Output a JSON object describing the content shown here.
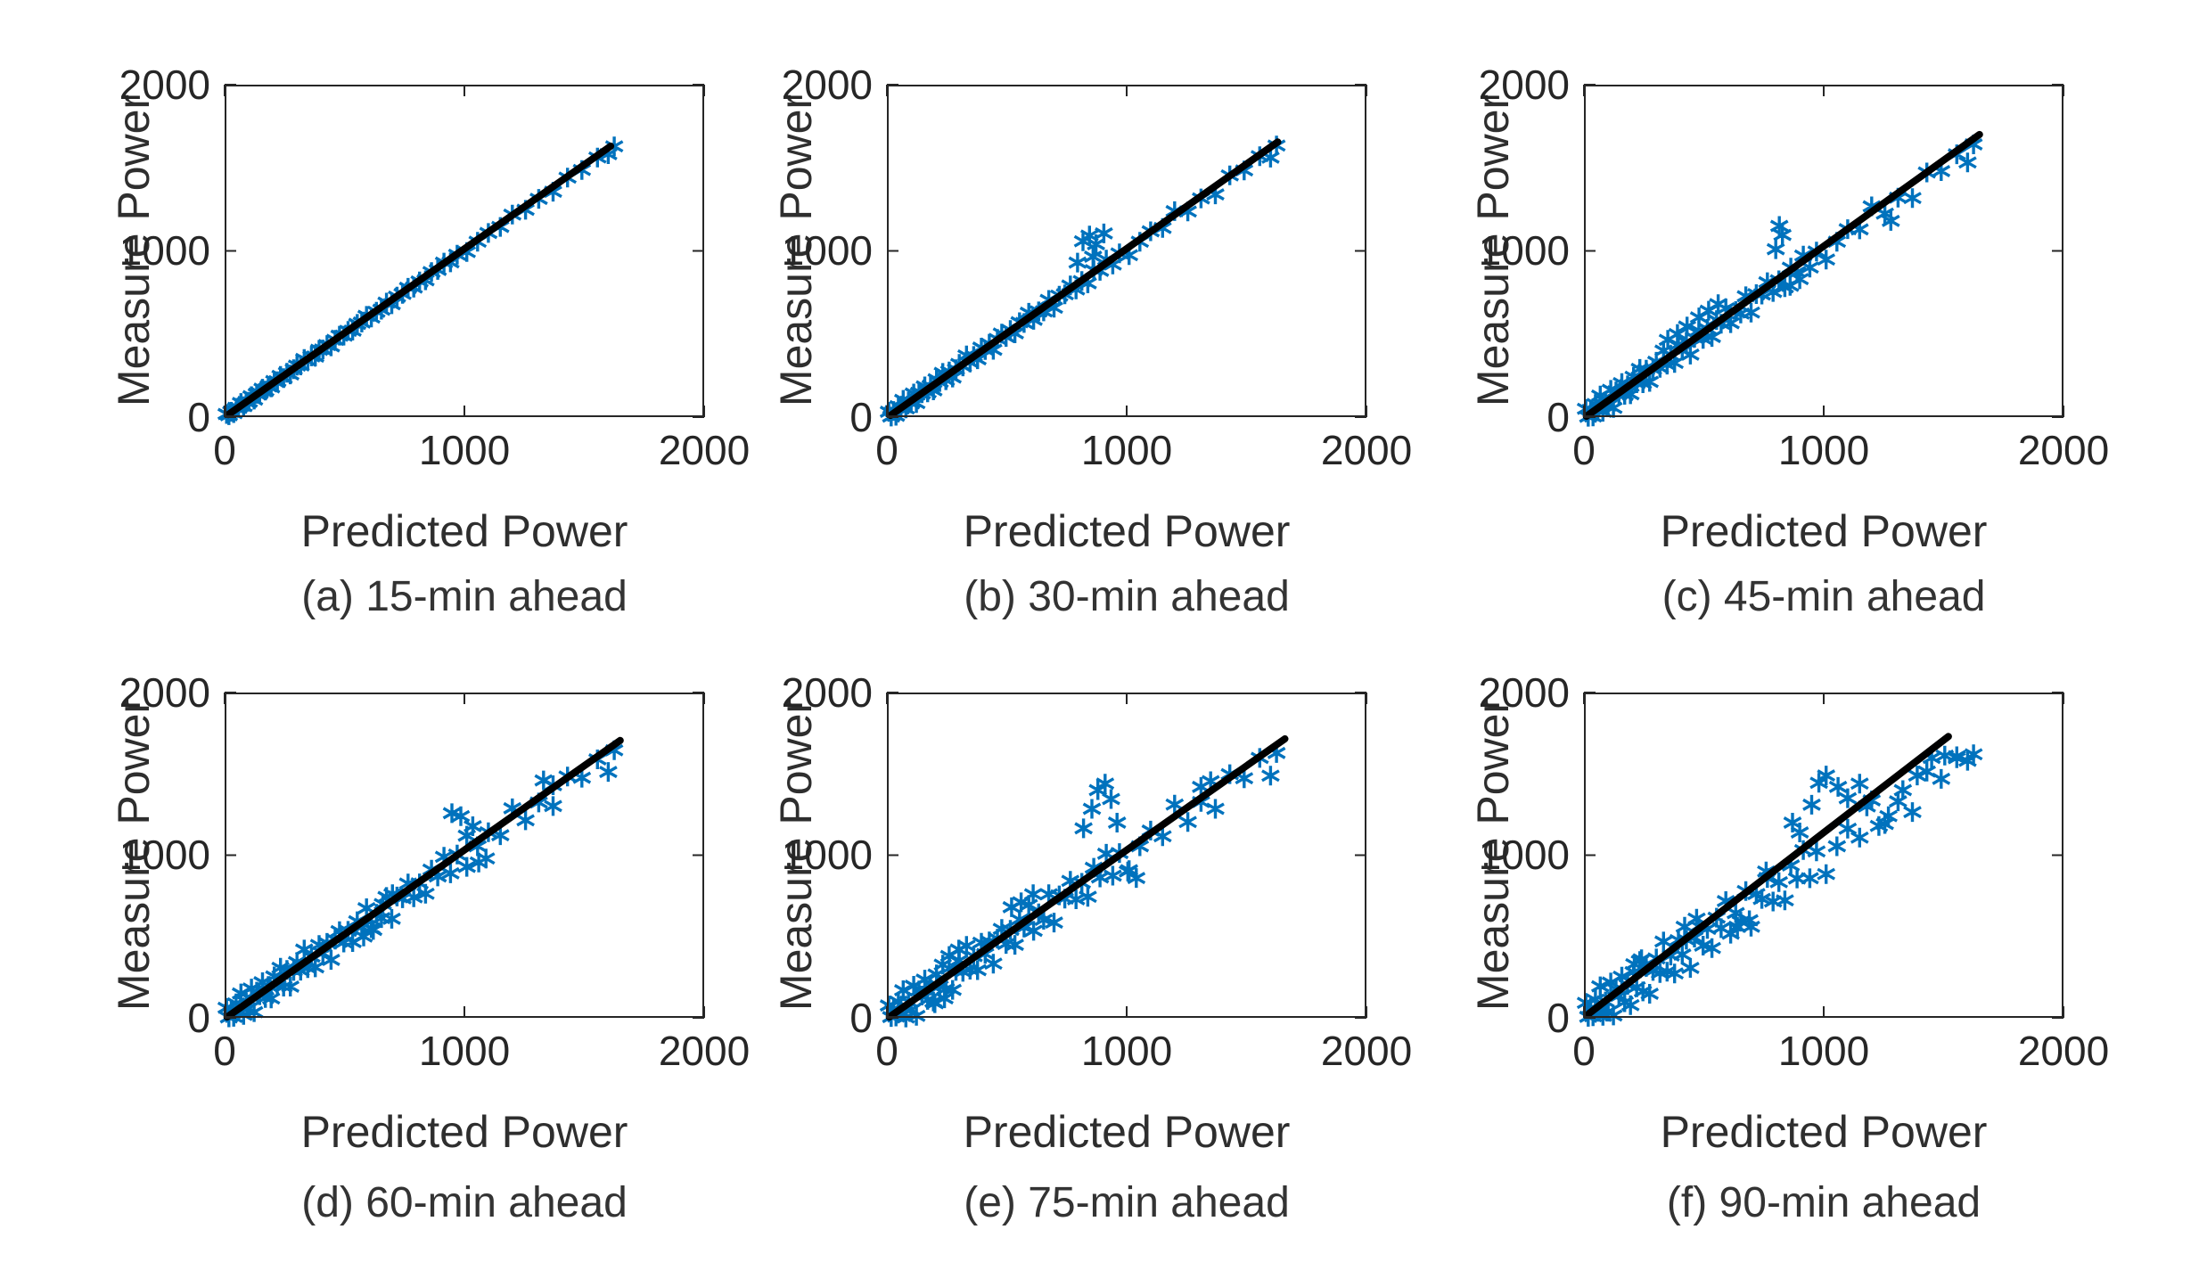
{
  "figure": {
    "layout": "2x3 grid of scatter subplots",
    "xlabel": "Predicted Power",
    "ylabel": "Measure Power",
    "marker_color": "#0072BD",
    "fit_line_color": "#000000",
    "axis_color": "#262626"
  },
  "chart_data": [
    {
      "type": "scatter",
      "caption": "(a) 15-min ahead",
      "xlabel": "Predicted Power",
      "ylabel": "Measure Power",
      "xlim": [
        0,
        2000
      ],
      "ylim": [
        0,
        2000
      ],
      "xticks": [
        0,
        1000,
        2000
      ],
      "yticks": [
        0,
        1000,
        2000
      ],
      "xtick_labels": [
        "0",
        "1000",
        "2000"
      ],
      "ytick_labels": [
        "0",
        "1000",
        "2000"
      ],
      "marker": "asterisk",
      "marker_color": "#0072BD",
      "fit_line": {
        "color": "#000000",
        "x": [
          15,
          1610
        ],
        "y": [
          15,
          1630
        ]
      },
      "x": [
        8,
        18,
        28,
        38,
        48,
        58,
        68,
        79,
        90,
        101,
        112,
        123,
        134,
        146,
        158,
        170,
        182,
        194,
        207,
        220,
        233,
        246,
        260,
        274,
        288,
        302,
        317,
        332,
        347,
        362,
        378,
        394,
        410,
        427,
        444,
        461,
        479,
        497,
        515,
        534,
        553,
        572,
        592,
        612,
        633,
        654,
        675,
        697,
        719,
        742,
        765,
        789,
        813,
        838,
        863,
        889,
        915,
        942,
        970,
        1010,
        1055,
        1100,
        1150,
        1200,
        1255,
        1310,
        1370,
        1430,
        1490,
        1555,
        1600,
        1625
      ],
      "y": [
        19,
        11,
        32,
        24,
        56,
        55,
        85,
        66,
        91,
        93,
        126,
        105,
        140,
        145,
        171,
        160,
        185,
        179,
        217,
        216,
        248,
        235,
        267,
        257,
        288,
        310,
        311,
        350,
        339,
        365,
        364,
        405,
        407,
        434,
        426,
        465,
        490,
        490,
        519,
        520,
        561,
        569,
        609,
        599,
        634,
        646,
        689,
        679,
        725,
        741,
        778,
        779,
        816,
        823,
        873,
        885,
        930,
        931,
        977,
        993,
        1055,
        1108,
        1144,
        1218,
        1247,
        1313,
        1356,
        1441,
        1487,
        1562,
        1582,
        1629
      ]
    },
    {
      "type": "scatter",
      "caption": "(b) 30-min ahead",
      "xlabel": "Predicted Power",
      "ylabel": "Measure Power",
      "xlim": [
        0,
        2000
      ],
      "ylim": [
        0,
        2000
      ],
      "xticks": [
        0,
        1000,
        2000
      ],
      "yticks": [
        0,
        1000,
        2000
      ],
      "xtick_labels": [
        "0",
        "1000",
        "2000"
      ],
      "ytick_labels": [
        "0",
        "1000",
        "2000"
      ],
      "marker": "asterisk",
      "marker_color": "#0072BD",
      "fit_line": {
        "color": "#000000",
        "x": [
          15,
          1630
        ],
        "y": [
          10,
          1655
        ]
      },
      "x": [
        8,
        18,
        28,
        38,
        48,
        58,
        68,
        79,
        90,
        101,
        112,
        123,
        134,
        146,
        158,
        170,
        182,
        194,
        207,
        220,
        233,
        246,
        260,
        274,
        288,
        302,
        317,
        332,
        347,
        362,
        378,
        394,
        410,
        427,
        444,
        461,
        479,
        497,
        515,
        534,
        553,
        572,
        592,
        612,
        633,
        654,
        675,
        697,
        719,
        742,
        765,
        789,
        813,
        838,
        863,
        889,
        915,
        942,
        970,
        1010,
        1055,
        1100,
        1150,
        1200,
        1255,
        1310,
        1370,
        1430,
        1490,
        1555,
        1600,
        1625,
        818,
        845,
        872,
        905,
        795,
        860
      ],
      "y": [
        32,
        3,
        37,
        8,
        66,
        52,
        104,
        52,
        93,
        83,
        142,
        84,
        146,
        143,
        185,
        149,
        188,
        161,
        228,
        211,
        266,
        222,
        275,
        238,
        288,
        320,
        305,
        371,
        329,
        368,
        348,
        418,
        404,
        442,
        405,
        470,
        503,
        482,
        524,
        504,
        571,
        566,
        628,
        585,
        636,
        636,
        705,
        658,
        731,
        739,
        792,
        768,
        819,
        805,
        884,
        880,
        948,
        918,
        985,
        974,
        1055,
        1118,
        1138,
        1239,
        1237,
        1316,
        1340,
        1454,
        1484,
        1570,
        1561,
        1634,
        1058,
        1092,
        1040,
        1105,
        930,
        965
      ]
    },
    {
      "type": "scatter",
      "caption": "(c) 45-min ahead",
      "xlabel": "Predicted Power",
      "ylabel": "Measure Power",
      "xlim": [
        0,
        2000
      ],
      "ylim": [
        0,
        2000
      ],
      "xticks": [
        0,
        1000,
        2000
      ],
      "yticks": [
        0,
        1000,
        2000
      ],
      "xtick_labels": [
        "0",
        "1000",
        "2000"
      ],
      "ytick_labels": [
        "0",
        "1000",
        "2000"
      ],
      "marker": "asterisk",
      "marker_color": "#0072BD",
      "fit_line": {
        "color": "#000000",
        "x": [
          10,
          1650
        ],
        "y": [
          5,
          1700
        ]
      },
      "x": [
        8,
        18,
        28,
        38,
        48,
        58,
        68,
        79,
        90,
        101,
        112,
        123,
        134,
        146,
        158,
        170,
        182,
        194,
        207,
        220,
        233,
        246,
        260,
        274,
        288,
        302,
        317,
        332,
        347,
        362,
        378,
        394,
        410,
        427,
        444,
        461,
        479,
        497,
        515,
        534,
        553,
        572,
        592,
        612,
        633,
        654,
        675,
        697,
        719,
        742,
        765,
        789,
        813,
        838,
        863,
        889,
        915,
        942,
        970,
        1010,
        1055,
        1100,
        1150,
        1200,
        1255,
        1310,
        1370,
        1430,
        1490,
        1555,
        1600,
        1625,
        800,
        828,
        815,
        860,
        900,
        1280,
        520,
        560,
        480,
        430,
        390,
        350
      ],
      "y": [
        50,
        2,
        44,
        4,
        79,
        48,
        130,
        32,
        95,
        70,
        164,
        55,
        155,
        141,
        205,
        134,
        192,
        137,
        243,
        204,
        290,
        204,
        286,
        212,
        288,
        333,
        296,
        400,
        316,
        372,
        326,
        436,
        400,
        453,
        376,
        477,
        521,
        471,
        531,
        482,
        584,
        562,
        654,
        565,
        638,
        623,
        727,
        629,
        740,
        737,
        812,
        753,
        823,
        781,
        899,
        873,
        972,
        900,
        996,
        948,
        1055,
        1131,
        1129,
        1268,
        1224,
        1320,
        1318,
        1472,
        1480,
        1581,
        1532,
        1641,
        1010,
        1096,
        1150,
        790,
        830,
        1180,
        640,
        680,
        600,
        545,
        500,
        465
      ]
    },
    {
      "type": "scatter",
      "caption": "(d) 60-min ahead",
      "xlabel": "Predicted Power",
      "ylabel": "Measure Power",
      "xlim": [
        0,
        2000
      ],
      "ylim": [
        0,
        2000
      ],
      "xticks": [
        0,
        1000,
        2000
      ],
      "yticks": [
        0,
        1000,
        2000
      ],
      "xtick_labels": [
        "0",
        "1000",
        "2000"
      ],
      "ytick_labels": [
        "0",
        "1000",
        "2000"
      ],
      "marker": "asterisk",
      "marker_color": "#0072BD",
      "fit_line": {
        "color": "#000000",
        "x": [
          10,
          1650
        ],
        "y": [
          5,
          1705
        ]
      },
      "x": [
        8,
        18,
        28,
        38,
        48,
        58,
        68,
        79,
        90,
        101,
        112,
        123,
        134,
        146,
        158,
        170,
        182,
        194,
        207,
        220,
        233,
        246,
        260,
        274,
        288,
        302,
        317,
        332,
        347,
        362,
        378,
        394,
        410,
        427,
        444,
        461,
        479,
        497,
        515,
        534,
        553,
        572,
        592,
        612,
        633,
        654,
        675,
        697,
        719,
        742,
        765,
        789,
        813,
        838,
        863,
        889,
        915,
        942,
        970,
        1010,
        1055,
        1100,
        1150,
        1200,
        1255,
        1310,
        1370,
        1430,
        1490,
        1555,
        1600,
        1625,
        948,
        985,
        1035,
        1010,
        1060,
        1090,
        700,
        660,
        1330,
        1370,
        620,
        580
      ],
      "y": [
        62,
        3,
        48,
        6,
        89,
        44,
        150,
        18,
        97,
        60,
        180,
        35,
        161,
        139,
        219,
        122,
        196,
        119,
        255,
        200,
        308,
        192,
        294,
        192,
        288,
        343,
        290,
        420,
        306,
        376,
        310,
        448,
        396,
        461,
        356,
        481,
        533,
        463,
        535,
        466,
        594,
        558,
        674,
        551,
        640,
        613,
        743,
        609,
        746,
        735,
        826,
        741,
        827,
        763,
        911,
        869,
        990,
        888,
        1004,
        928,
        1055,
        1141,
        1123,
        1288,
        1214,
        1324,
        1302,
        1484,
        1476,
        1589,
        1512,
        1645,
        1258,
        1240,
        1178,
        1120,
        955,
        980,
        760,
        700,
        1460,
        1430,
        540,
        500
      ]
    },
    {
      "type": "scatter",
      "caption": "(e) 75-min ahead",
      "xlabel": "Predicted Power",
      "ylabel": "Measure Power",
      "xlim": [
        0,
        2000
      ],
      "ylim": [
        0,
        2000
      ],
      "xticks": [
        0,
        1000,
        2000
      ],
      "yticks": [
        0,
        1000,
        2000
      ],
      "xtick_labels": [
        "0",
        "1000",
        "2000"
      ],
      "ytick_labels": [
        "0",
        "1000",
        "2000"
      ],
      "marker": "asterisk",
      "marker_color": "#0072BD",
      "fit_line": {
        "color": "#000000",
        "x": [
          10,
          1660
        ],
        "y": [
          5,
          1715
        ]
      },
      "x": [
        8,
        18,
        28,
        38,
        48,
        58,
        68,
        79,
        90,
        101,
        112,
        123,
        134,
        146,
        158,
        170,
        182,
        194,
        207,
        220,
        233,
        246,
        260,
        274,
        288,
        302,
        317,
        332,
        347,
        362,
        378,
        394,
        410,
        427,
        444,
        461,
        479,
        497,
        515,
        534,
        553,
        572,
        592,
        612,
        633,
        654,
        675,
        697,
        719,
        742,
        765,
        789,
        813,
        838,
        863,
        889,
        915,
        942,
        970,
        1010,
        1055,
        1100,
        1150,
        1200,
        1255,
        1310,
        1370,
        1430,
        1490,
        1555,
        1600,
        1625,
        820,
        855,
        880,
        910,
        935,
        960,
        1005,
        1040,
        300,
        260,
        1310,
        1350,
        520,
        560,
        610,
        200,
        240
      ],
      "y": [
        76,
        5,
        54,
        8,
        99,
        41,
        170,
        2,
        99,
        50,
        197,
        12,
        168,
        137,
        235,
        110,
        199,
        100,
        267,
        194,
        327,
        178,
        303,
        172,
        288,
        353,
        283,
        443,
        296,
        379,
        293,
        462,
        393,
        470,
        333,
        487,
        547,
        454,
        541,
        449,
        604,
        555,
        694,
        535,
        642,
        603,
        760,
        586,
        753,
        733,
        842,
        729,
        830,
        744,
        923,
        863,
        1009,
        874,
        1013,
        908,
        1055,
        1151,
        1116,
        1311,
        1204,
        1327,
        1285,
        1498,
        1473,
        1598,
        1489,
        1628,
        1165,
        1285,
        1400,
        1440,
        1345,
        1200,
        900,
        860,
        420,
        380,
        1420,
        1455,
        680,
        710,
        760,
        90,
        120
      ]
    },
    {
      "type": "scatter",
      "caption": "(f) 90-min ahead",
      "xlabel": "Predicted Power",
      "ylabel": "Measure Power",
      "xlim": [
        0,
        2000
      ],
      "ylim": [
        0,
        2000
      ],
      "xticks": [
        0,
        1000,
        2000
      ],
      "yticks": [
        0,
        1000,
        2000
      ],
      "xtick_labels": [
        "0",
        "1000",
        "2000"
      ],
      "ytick_labels": [
        "0",
        "1000",
        "2000"
      ],
      "marker": "asterisk",
      "marker_color": "#0072BD",
      "fit_line": {
        "color": "#000000",
        "x": [
          20,
          1520
        ],
        "y": [
          25,
          1730
        ]
      },
      "x": [
        8,
        18,
        28,
        38,
        48,
        58,
        68,
        79,
        90,
        101,
        112,
        123,
        134,
        146,
        158,
        170,
        182,
        194,
        207,
        220,
        233,
        246,
        260,
        274,
        288,
        302,
        317,
        332,
        347,
        362,
        378,
        394,
        410,
        427,
        444,
        461,
        479,
        497,
        515,
        534,
        553,
        572,
        592,
        612,
        633,
        654,
        675,
        697,
        719,
        742,
        765,
        789,
        813,
        838,
        863,
        889,
        915,
        942,
        970,
        1010,
        1055,
        1100,
        1150,
        1200,
        1255,
        1310,
        1370,
        1430,
        1490,
        1555,
        1600,
        1625,
        950,
        980,
        1010,
        1060,
        1100,
        1150,
        1180,
        870,
        900,
        760,
        640,
        690,
        1450,
        1505,
        1555,
        240,
        210,
        420,
        470,
        1230,
        1270,
        1330,
        1390
      ],
      "y": [
        92,
        6,
        60,
        10,
        111,
        37,
        194,
        12,
        101,
        38,
        217,
        14,
        176,
        135,
        253,
        96,
        203,
        78,
        281,
        188,
        349,
        162,
        313,
        148,
        288,
        365,
        275,
        469,
        284,
        383,
        273,
        478,
        389,
        480,
        307,
        493,
        563,
        444,
        547,
        429,
        616,
        551,
        718,
        517,
        644,
        591,
        780,
        560,
        761,
        731,
        860,
        715,
        834,
        722,
        937,
        857,
        1031,
        858,
        1023,
        884,
        1055,
        1163,
        1108,
        1337,
        1192,
        1331,
        1265,
        1514,
        1469,
        1608,
        1580,
        1620,
        1310,
        1445,
        1490,
        1420,
        1350,
        1440,
        1300,
        1200,
        1140,
        900,
        560,
        600,
        1598,
        1612,
        1596,
        360,
        330,
        560,
        610,
        1180,
        1240,
        1400,
        1490
      ]
    }
  ]
}
